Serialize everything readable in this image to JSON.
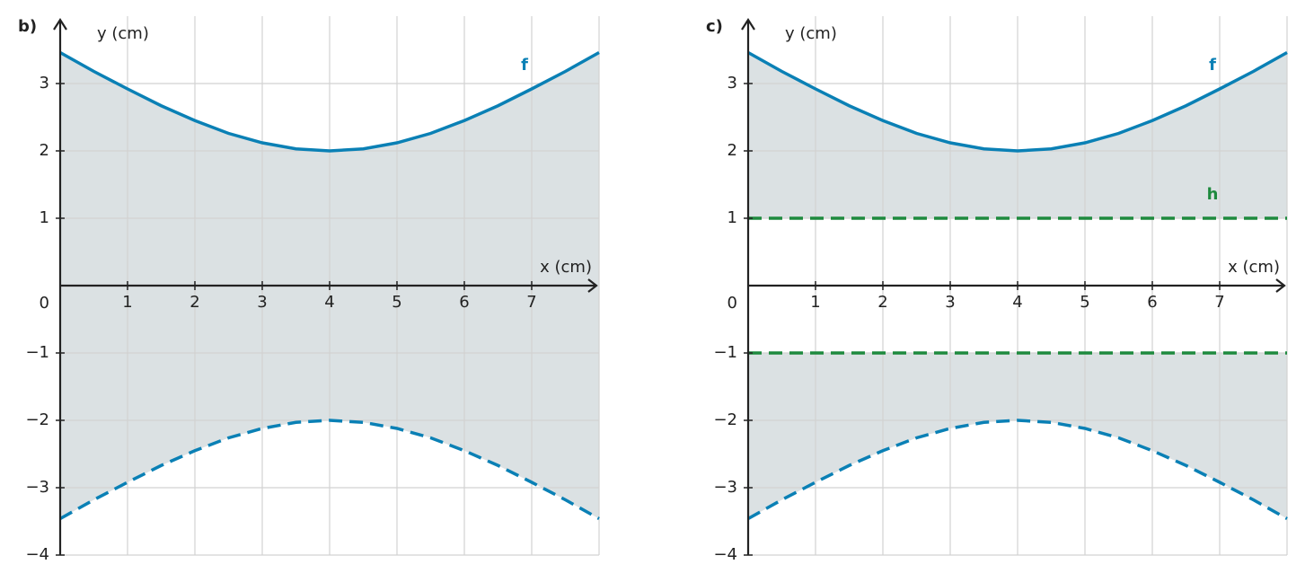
{
  "chart_data": [
    {
      "type": "line",
      "panel_label": "b)",
      "xlabel": "x (cm)",
      "ylabel": "y (cm)",
      "xlim": [
        0,
        8
      ],
      "ylim": [
        -4,
        4
      ],
      "xticks": [
        1,
        2,
        3,
        4,
        5,
        6,
        7
      ],
      "yticks": [
        {
          "value": -4,
          "label": "−4"
        },
        {
          "value": -3,
          "label": "−3"
        },
        {
          "value": -2,
          "label": "−2"
        },
        {
          "value": -1,
          "label": "−1"
        },
        0,
        1,
        2,
        3
      ],
      "grid": true,
      "fill_color": "#dbe1e3",
      "fill_between": [
        [
          0,
          1
        ]
      ],
      "x": [
        0,
        0.5,
        1,
        1.5,
        2,
        2.5,
        3,
        3.5,
        4,
        4.5,
        5,
        5.5,
        6,
        6.5,
        7,
        7.5,
        8
      ],
      "series": [
        {
          "name": "f",
          "color": "#0a80b5",
          "dashed": false,
          "values": [
            3.46,
            3.18,
            2.92,
            2.67,
            2.45,
            2.26,
            2.12,
            2.03,
            2,
            2.03,
            2.12,
            2.26,
            2.45,
            2.67,
            2.92,
            3.18,
            3.46
          ]
        },
        {
          "color": "#0a80b5",
          "dashed": true,
          "values": [
            -3.46,
            -3.18,
            -2.92,
            -2.67,
            -2.45,
            -2.26,
            -2.12,
            -2.03,
            -2,
            -2.03,
            -2.12,
            -2.26,
            -2.45,
            -2.67,
            -2.92,
            -3.18,
            -3.46
          ]
        }
      ]
    },
    {
      "type": "line",
      "panel_label": "c)",
      "xlabel": "x (cm)",
      "ylabel": "y (cm)",
      "xlim": [
        0,
        8
      ],
      "ylim": [
        -4,
        4
      ],
      "xticks": [
        1,
        2,
        3,
        4,
        5,
        6,
        7
      ],
      "yticks": [
        {
          "value": -4,
          "label": "−4"
        },
        {
          "value": -3,
          "label": "−3"
        },
        {
          "value": -2,
          "label": "−2"
        },
        {
          "value": -1,
          "label": "−1"
        },
        0,
        1,
        2,
        3
      ],
      "grid": true,
      "fill_color": "#dbe1e3",
      "fill_between": [
        [
          0,
          2
        ],
        [
          3,
          1
        ]
      ],
      "x": [
        0,
        0.5,
        1,
        1.5,
        2,
        2.5,
        3,
        3.5,
        4,
        4.5,
        5,
        5.5,
        6,
        6.5,
        7,
        7.5,
        8
      ],
      "series": [
        {
          "name": "f",
          "color": "#0a80b5",
          "dashed": false,
          "values": [
            3.46,
            3.18,
            2.92,
            2.67,
            2.45,
            2.26,
            2.12,
            2.03,
            2,
            2.03,
            2.12,
            2.26,
            2.45,
            2.67,
            2.92,
            3.18,
            3.46
          ]
        },
        {
          "color": "#0a80b5",
          "dashed": true,
          "values": [
            -3.46,
            -3.18,
            -2.92,
            -2.67,
            -2.45,
            -2.26,
            -2.12,
            -2.03,
            -2,
            -2.03,
            -2.12,
            -2.26,
            -2.45,
            -2.67,
            -2.92,
            -3.18,
            -3.46
          ]
        },
        {
          "name": "h",
          "color": "#1e8a3e",
          "dashed": true,
          "x": [
            0,
            8
          ],
          "values": [
            1,
            1
          ]
        },
        {
          "color": "#1e8a3e",
          "dashed": true,
          "x": [
            0,
            8
          ],
          "values": [
            -1,
            -1
          ]
        }
      ]
    }
  ]
}
